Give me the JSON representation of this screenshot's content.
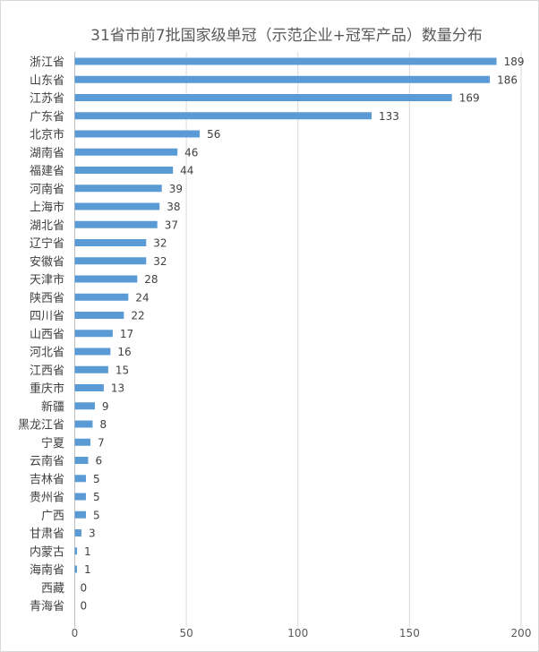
{
  "chart_data": {
    "type": "bar",
    "orientation": "horizontal",
    "title": "31省市前7批国家级单冠（示范企业+冠军产品）数量分布",
    "categories": [
      "浙江省",
      "山东省",
      "江苏省",
      "广东省",
      "北京市",
      "湖南省",
      "福建省",
      "河南省",
      "上海市",
      "湖北省",
      "辽宁省",
      "安徽省",
      "天津市",
      "陕西省",
      "四川省",
      "山西省",
      "河北省",
      "江西省",
      "重庆市",
      "新疆",
      "黑龙江省",
      "宁夏",
      "云南省",
      "吉林省",
      "贵州省",
      "广西",
      "甘肃省",
      "内蒙古",
      "海南省",
      "西藏",
      "青海省"
    ],
    "values": [
      189,
      186,
      169,
      133,
      56,
      46,
      44,
      39,
      38,
      37,
      32,
      32,
      28,
      24,
      22,
      17,
      16,
      15,
      13,
      9,
      8,
      7,
      6,
      5,
      5,
      5,
      3,
      1,
      1,
      0,
      0
    ],
    "xlim": [
      0,
      200
    ],
    "xticks": [
      "0",
      "50",
      "100",
      "150",
      "200"
    ],
    "grid": true,
    "data_labels": true,
    "bar_color": "#5B9BD5"
  }
}
